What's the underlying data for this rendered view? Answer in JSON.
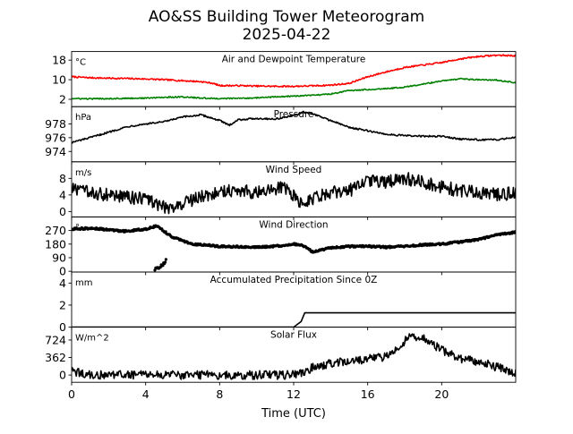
{
  "chart_data": {
    "type": "line",
    "title": "AO&SS Building Tower Meteorogram",
    "subtitle": "2025-04-22",
    "xlabel": "Time (UTC)",
    "xlim": [
      0,
      24
    ],
    "x_ticks": [
      0,
      4,
      8,
      12,
      16,
      20
    ],
    "x_tick_labels": [
      "0",
      "4",
      "8",
      "12",
      "16",
      "20"
    ],
    "grid": false,
    "colors": {
      "temperature": "#ff0000",
      "dewpoint": "#008000",
      "default": "#000000"
    },
    "panels": [
      {
        "title": "Air and Dewpoint Temperature",
        "unit": "°C",
        "ylim": [
          -1,
          21.5
        ],
        "y_ticks": [
          2,
          10,
          18
        ],
        "y_tick_labels": [
          "2",
          "10",
          "18"
        ],
        "series": [
          {
            "color": "#ff0000",
            "noise": 0.3,
            "x": [
              0,
              1,
              2,
              3,
              4,
              5,
              6,
              7,
              7.6,
              8,
              9,
              10,
              11,
              12,
              13,
              14,
              15,
              16,
              17,
              18,
              19,
              20,
              21,
              22,
              23,
              24
            ],
            "y": [
              11.2,
              10.8,
              10.6,
              10.5,
              10.3,
              10.0,
              9.6,
              9.2,
              8.6,
              7.6,
              7.6,
              7.4,
              7.3,
              7.3,
              7.5,
              7.8,
              8.5,
              11.2,
              13.2,
              15.0,
              16.0,
              17.0,
              18.5,
              19.5,
              20.0,
              19.8
            ]
          },
          {
            "color": "#008000",
            "noise": 0.25,
            "x": [
              0,
              1,
              2,
              3,
              4,
              5,
              6,
              7,
              8,
              9,
              10,
              11,
              12,
              13,
              14,
              15,
              16,
              17,
              18,
              19,
              20,
              21,
              22,
              23,
              24
            ],
            "y": [
              2.3,
              2.2,
              2.3,
              2.4,
              2.5,
              2.8,
              3.0,
              2.5,
              2.3,
              2.4,
              2.6,
              3.0,
              3.3,
              3.6,
              4.2,
              5.6,
              6.0,
              6.4,
              7.0,
              8.2,
              9.5,
              10.3,
              10.0,
              9.8,
              8.8
            ]
          }
        ]
      },
      {
        "title": "Pressure",
        "unit": "hPa",
        "ylim": [
          972.5,
          980.5
        ],
        "y_ticks": [
          974,
          976,
          978
        ],
        "y_tick_labels": [
          "974",
          "976",
          "978"
        ],
        "series": [
          {
            "color": "#000000",
            "noise": 0.12,
            "x": [
              0,
              1,
              2,
              3,
              4,
              5,
              6,
              7,
              8,
              8.5,
              9,
              10,
              11,
              12,
              12.5,
              13,
              14,
              15,
              16,
              17,
              18,
              19,
              20,
              21,
              22,
              23,
              24
            ],
            "y": [
              975.3,
              976.0,
              976.8,
              977.6,
              978.0,
              978.3,
              979.0,
              979.3,
              978.5,
              977.8,
              978.6,
              978.8,
              978.7,
              979.2,
              979.7,
              979.5,
              978.5,
              977.5,
              977.0,
              976.5,
              976.3,
              976.2,
              976.2,
              975.8,
              975.7,
              975.7,
              976.1
            ]
          }
        ]
      },
      {
        "title": "Wind Speed",
        "unit": "m/s",
        "ylim": [
          -1.3,
          12
        ],
        "y_ticks": [
          0,
          4,
          8
        ],
        "y_tick_labels": [
          "0",
          "4",
          "8"
        ],
        "series": [
          {
            "color": "#000000",
            "noise": 1.6,
            "x": [
              0,
              1,
              2,
              3,
              4,
              5,
              5.5,
              6,
              7,
              8,
              9,
              10,
              11,
              11.5,
              12,
              12.5,
              13,
              14,
              15,
              16,
              17,
              18,
              19,
              20,
              21,
              22,
              23,
              24
            ],
            "y": [
              5.5,
              4.5,
              4.0,
              3.5,
              3.0,
              1.0,
              1.0,
              2.0,
              3.5,
              5.0,
              5.2,
              4.5,
              5.5,
              6.0,
              4.0,
              1.5,
              3.0,
              4.5,
              5.0,
              7.5,
              7.0,
              8.0,
              7.0,
              6.0,
              5.0,
              4.5,
              4.0,
              4.5
            ]
          }
        ]
      },
      {
        "title": "Wind Direction",
        "unit": "°",
        "ylim": [
          -5,
          360
        ],
        "y_ticks": [
          0,
          90,
          180,
          270
        ],
        "y_tick_labels": [
          "0",
          "90",
          "180",
          "270"
        ],
        "series": [
          {
            "color": "#000000",
            "noise": 6,
            "style": "dots",
            "x": [
              0,
              1,
              2,
              3,
              4,
              4.6,
              5.4,
              6.5,
              8,
              10,
              11,
              12,
              12.5,
              13,
              14,
              15,
              16,
              17,
              18,
              19,
              20,
              21,
              22,
              23,
              24
            ],
            "y": [
              280,
              285,
              275,
              265,
              280,
              300,
              230,
              180,
              165,
              160,
              165,
              180,
              170,
              130,
              155,
              165,
              165,
              160,
              165,
              175,
              180,
              195,
              210,
              240,
              260
            ]
          },
          {
            "color": "#000000",
            "noise": 10,
            "style": "dots",
            "x": [
              4.5,
              4.7,
              4.9,
              5.1
            ],
            "y": [
              10,
              25,
              40,
              75
            ]
          }
        ]
      },
      {
        "title": "Accumulated Precipitation Since 0Z",
        "unit": "mm",
        "ylim": [
          0,
          5
        ],
        "y_ticks": [
          0,
          2,
          4
        ],
        "y_tick_labels": [
          "0",
          "2",
          "4"
        ],
        "series": [
          {
            "color": "#000000",
            "noise": 0,
            "step": true,
            "x": [
              0,
              12.0,
              12.2,
              12.4,
              12.6,
              24
            ],
            "y": [
              0,
              0,
              0.25,
              0.5,
              1.3,
              1.3
            ]
          }
        ]
      },
      {
        "title": "Solar Flux",
        "unit": "W/m^2",
        "ylim": [
          -150,
          990
        ],
        "y_ticks": [
          0,
          362,
          724
        ],
        "y_tick_labels": [
          "0",
          "362",
          "724"
        ],
        "series": [
          {
            "color": "#000000",
            "noise": 90,
            "x": [
              0,
              0.3,
              1,
              2,
              3,
              4,
              5,
              6,
              7,
              8,
              9,
              10,
              11,
              12,
              12.5,
              13,
              14,
              15,
              16,
              17,
              17.8,
              18.2,
              19,
              20,
              21,
              22,
              23,
              23.5,
              24
            ],
            "y": [
              120,
              50,
              0,
              0,
              0,
              0,
              0,
              0,
              0,
              0,
              0,
              0,
              0,
              0,
              40,
              150,
              250,
              300,
              330,
              380,
              600,
              820,
              750,
              520,
              330,
              280,
              160,
              110,
              40
            ]
          }
        ]
      }
    ]
  }
}
